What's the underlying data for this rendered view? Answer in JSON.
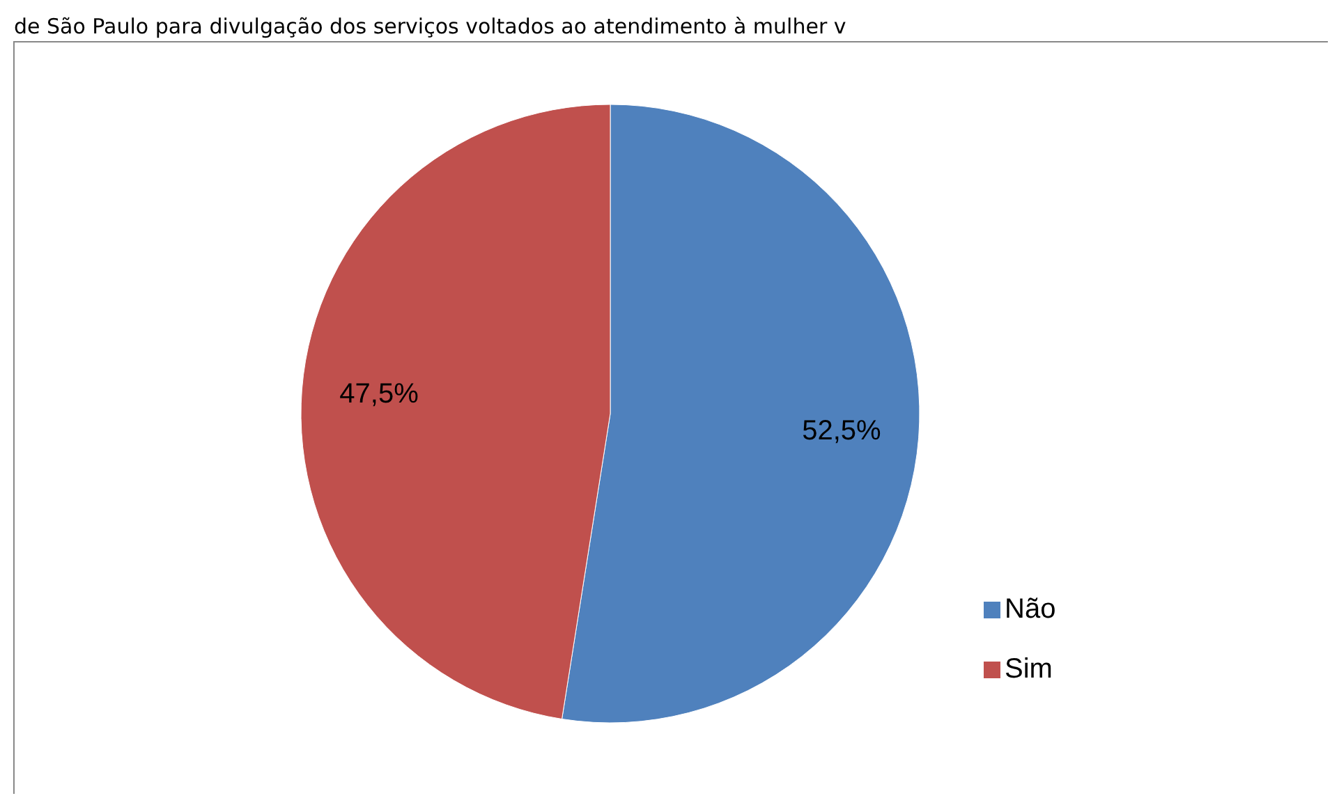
{
  "chart_data": {
    "type": "pie",
    "title": "de São Paulo para divulgação dos serviços voltados ao atendimento à mulher v",
    "categories": [
      "Não",
      "Sim"
    ],
    "values": [
      52.5,
      47.5
    ],
    "colors": [
      "#4f81bd",
      "#c0504d"
    ],
    "value_labels": [
      "52,5%",
      "47,5%"
    ],
    "legend": "right"
  }
}
